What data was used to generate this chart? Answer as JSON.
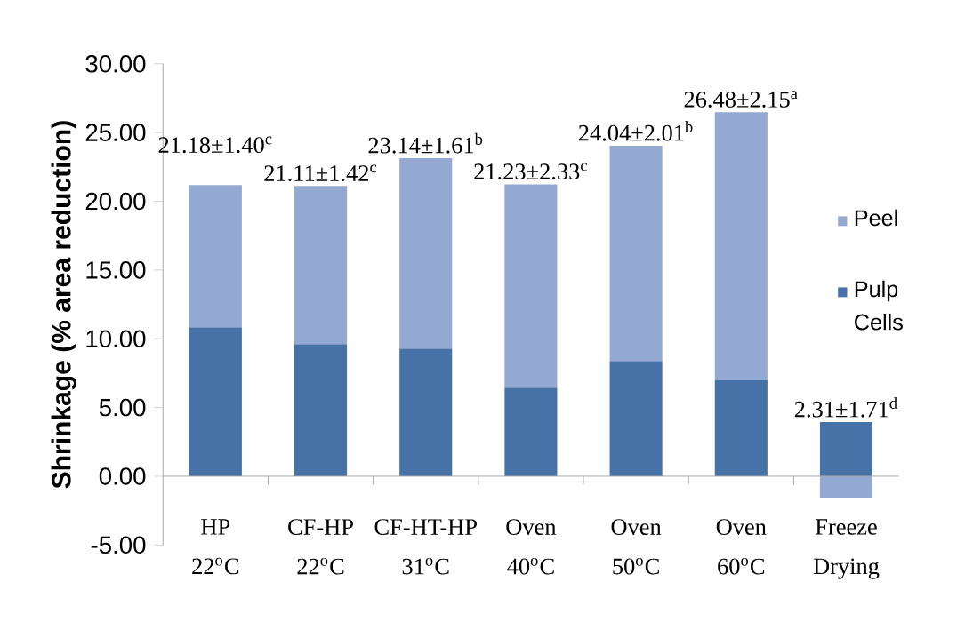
{
  "chart_data": {
    "type": "bar",
    "stacked": true,
    "ylabel": "Shrinkage (% area reduction)",
    "categories": [
      "HP 22$^{o}$C",
      "CF-HP 22$^{o}$C",
      "CF-HT-HP 31$^{o}$C",
      "Oven 40$^{o}$C",
      "Oven 50$^{o}$C",
      "Oven 60$^{o}$C",
      "Freeze Drying"
    ],
    "series": [
      {
        "name": "Pulp Cells",
        "color": "#4672a8",
        "values": [
          10.84,
          9.61,
          9.29,
          6.45,
          8.39,
          6.97,
          3.94
        ]
      },
      {
        "name": "Peel",
        "color": "#94a9d2",
        "values": [
          10.34,
          11.5,
          13.85,
          14.78,
          15.65,
          19.51,
          -1.55
        ]
      }
    ],
    "value_labels": [
      "21.18±1.40$^{c}$",
      "21.11±1.42$^{c}$",
      "23.14±1.61$^{b}$",
      "21.23±2.33$^{c}$",
      "24.04±2.01$^{b}$",
      "26.48±2.15$^{a}$",
      "2.31±1.71$^{d}$"
    ],
    "ylim": [
      -5,
      30
    ],
    "yticks": [
      {
        "value": -5,
        "label": "-5.00"
      },
      {
        "value": 0,
        "label": "0.00"
      },
      {
        "value": 5,
        "label": "5.00"
      },
      {
        "value": 10,
        "label": "10.00"
      },
      {
        "value": 15,
        "label": "15.00"
      },
      {
        "value": 20,
        "label": "20.00"
      },
      {
        "value": 25,
        "label": "25.00"
      },
      {
        "value": 30,
        "label": "30.00"
      }
    ],
    "legend": "right"
  }
}
